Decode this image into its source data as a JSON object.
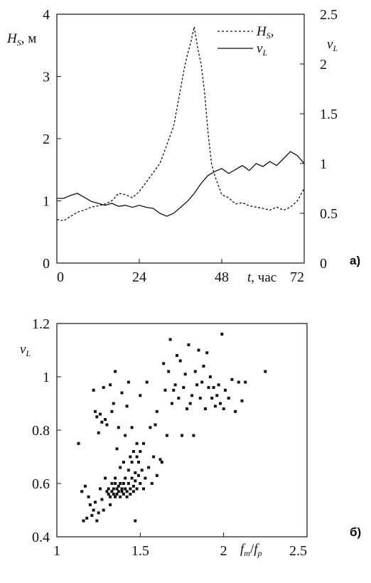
{
  "chart_data": [
    {
      "type": "line",
      "panel_label": "а)",
      "x_axis": {
        "ticks": [
          "0",
          "24",
          "48",
          "72"
        ],
        "label_var": "t",
        "label_unit": ", час",
        "range": [
          0,
          72
        ]
      },
      "y_left": {
        "ticks": [
          "0",
          "1",
          "2",
          "3",
          "4"
        ],
        "label_var": "H",
        "label_sub": "S",
        "label_unit": ", м",
        "range": [
          0,
          4
        ]
      },
      "y_right": {
        "ticks": [
          "0",
          "0.5",
          "1",
          "1.5",
          "2",
          "2.5"
        ],
        "label_var": "ν",
        "label_sub": "L",
        "range": [
          0,
          2.5
        ]
      },
      "legend": [
        {
          "var": "H",
          "sub": "S",
          "suffix": ",",
          "style": "dashed"
        },
        {
          "var": "ν",
          "sub": "L",
          "suffix": "",
          "style": "solid"
        }
      ],
      "series": [
        {
          "name": "Hs",
          "axis": "left",
          "style": "dashed",
          "x": [
            0,
            2,
            4,
            6,
            8,
            10,
            12,
            14,
            16,
            18,
            20,
            22,
            24,
            26,
            28,
            30,
            32,
            34,
            35,
            36,
            37,
            38,
            39,
            40,
            41,
            42,
            43,
            44,
            45,
            46,
            47,
            48,
            50,
            52,
            54,
            56,
            58,
            60,
            62,
            64,
            66,
            68,
            70,
            72
          ],
          "y": [
            0.7,
            0.68,
            0.75,
            0.82,
            0.85,
            0.9,
            0.92,
            0.95,
            1.0,
            1.12,
            1.1,
            1.05,
            1.15,
            1.3,
            1.45,
            1.6,
            1.9,
            2.2,
            2.5,
            2.8,
            3.1,
            3.35,
            3.55,
            3.8,
            3.45,
            3.2,
            2.75,
            2.1,
            1.6,
            1.4,
            1.25,
            1.1,
            1.05,
            0.95,
            0.97,
            0.92,
            0.9,
            0.88,
            0.85,
            0.9,
            0.85,
            0.9,
            1.0,
            1.2
          ]
        },
        {
          "name": "νL",
          "axis": "right",
          "style": "solid",
          "x": [
            0,
            2,
            4,
            6,
            8,
            10,
            12,
            14,
            16,
            18,
            20,
            22,
            24,
            26,
            28,
            30,
            32,
            34,
            36,
            38,
            40,
            42,
            44,
            46,
            48,
            50,
            52,
            54,
            56,
            58,
            60,
            62,
            64,
            66,
            68,
            70,
            72
          ],
          "y": [
            0.65,
            0.65,
            0.68,
            0.7,
            0.66,
            0.62,
            0.6,
            0.58,
            0.6,
            0.57,
            0.58,
            0.56,
            0.58,
            0.56,
            0.55,
            0.5,
            0.47,
            0.5,
            0.56,
            0.62,
            0.7,
            0.8,
            0.88,
            0.92,
            0.95,
            0.9,
            0.94,
            0.98,
            0.93,
            1.0,
            0.97,
            1.02,
            0.98,
            1.05,
            1.12,
            1.08,
            1.0
          ]
        }
      ]
    },
    {
      "type": "scatter",
      "panel_label": "б)",
      "x_axis": {
        "ticks": [
          "1",
          "1.5",
          "2",
          "2.5"
        ],
        "range": [
          1,
          2.5
        ],
        "label_num": "f",
        "label_num_sub": "m",
        "label_den": "f",
        "label_den_sub": "p"
      },
      "y_axis": {
        "ticks": [
          "0.4",
          "0.6",
          "0.8",
          "1",
          "1.2"
        ],
        "range": [
          0.4,
          1.2
        ],
        "label_var": "ν",
        "label_sub": "L"
      },
      "points": [
        [
          1.13,
          0.75
        ],
        [
          1.15,
          0.57
        ],
        [
          1.16,
          0.46
        ],
        [
          1.17,
          0.59
        ],
        [
          1.18,
          0.47
        ],
        [
          1.19,
          0.55
        ],
        [
          1.2,
          0.52
        ],
        [
          1.21,
          0.48
        ],
        [
          1.22,
          0.5
        ],
        [
          1.22,
          0.95
        ],
        [
          1.23,
          0.87
        ],
        [
          1.23,
          0.53
        ],
        [
          1.24,
          0.46
        ],
        [
          1.24,
          0.85
        ],
        [
          1.25,
          0.49
        ],
        [
          1.25,
          0.79
        ],
        [
          1.26,
          0.58
        ],
        [
          1.26,
          0.86
        ],
        [
          1.27,
          0.54
        ],
        [
          1.27,
          0.83
        ],
        [
          1.28,
          0.5
        ],
        [
          1.28,
          0.96
        ],
        [
          1.29,
          0.84
        ],
        [
          1.29,
          0.62
        ],
        [
          1.3,
          0.82
        ],
        [
          1.3,
          0.57
        ],
        [
          1.31,
          0.56
        ],
        [
          1.31,
          0.58
        ],
        [
          1.32,
          0.55
        ],
        [
          1.32,
          0.52
        ],
        [
          1.32,
          0.97
        ],
        [
          1.33,
          0.6
        ],
        [
          1.33,
          0.57
        ],
        [
          1.33,
          0.87
        ],
        [
          1.34,
          0.56
        ],
        [
          1.34,
          0.58
        ],
        [
          1.34,
          0.9
        ],
        [
          1.35,
          0.6
        ],
        [
          1.35,
          0.55
        ],
        [
          1.35,
          0.62
        ],
        [
          1.35,
          1.02
        ],
        [
          1.36,
          0.58
        ],
        [
          1.36,
          0.56
        ],
        [
          1.36,
          0.73
        ],
        [
          1.37,
          0.59
        ],
        [
          1.37,
          0.57
        ],
        [
          1.37,
          0.81
        ],
        [
          1.38,
          0.6
        ],
        [
          1.38,
          0.55
        ],
        [
          1.38,
          0.66
        ],
        [
          1.39,
          0.58
        ],
        [
          1.39,
          0.57
        ],
        [
          1.39,
          0.94
        ],
        [
          1.4,
          0.6
        ],
        [
          1.4,
          0.56
        ],
        [
          1.4,
          0.68
        ],
        [
          1.41,
          0.58
        ],
        [
          1.41,
          0.62
        ],
        [
          1.41,
          0.78
        ],
        [
          1.42,
          0.57
        ],
        [
          1.42,
          0.55
        ],
        [
          1.42,
          0.89
        ],
        [
          1.43,
          0.6
        ],
        [
          1.43,
          0.65
        ],
        [
          1.43,
          0.98
        ],
        [
          1.44,
          0.58
        ],
        [
          1.44,
          0.7
        ],
        [
          1.44,
          0.56
        ],
        [
          1.45,
          0.62
        ],
        [
          1.45,
          0.68
        ],
        [
          1.45,
          0.81
        ],
        [
          1.46,
          0.59
        ],
        [
          1.46,
          0.72
        ],
        [
          1.46,
          0.57
        ],
        [
          1.47,
          0.64
        ],
        [
          1.47,
          0.61
        ],
        [
          1.47,
          0.46
        ],
        [
          1.48,
          0.7
        ],
        [
          1.48,
          0.58
        ],
        [
          1.48,
          0.75
        ],
        [
          1.49,
          0.63
        ],
        [
          1.49,
          0.68
        ],
        [
          1.5,
          0.6
        ],
        [
          1.5,
          0.72
        ],
        [
          1.5,
          0.93
        ],
        [
          1.51,
          0.65
        ],
        [
          1.52,
          0.58
        ],
        [
          1.52,
          0.75
        ],
        [
          1.53,
          0.62
        ],
        [
          1.54,
          0.98
        ],
        [
          1.55,
          0.66
        ],
        [
          1.56,
          0.81
        ],
        [
          1.57,
          0.6
        ],
        [
          1.58,
          0.7
        ],
        [
          1.59,
          0.82
        ],
        [
          1.6,
          0.87
        ],
        [
          1.6,
          0.63
        ],
        [
          1.62,
          0.69
        ],
        [
          1.63,
          0.68
        ],
        [
          1.64,
          1.05
        ],
        [
          1.65,
          0.95
        ],
        [
          1.66,
          0.78
        ],
        [
          1.67,
          1.02
        ],
        [
          1.68,
          1.14
        ],
        [
          1.69,
          0.9
        ],
        [
          1.7,
          0.95
        ],
        [
          1.71,
          0.97
        ],
        [
          1.72,
          1.08
        ],
        [
          1.73,
          0.92
        ],
        [
          1.74,
          1.06
        ],
        [
          1.75,
          0.78
        ],
        [
          1.76,
          0.96
        ],
        [
          1.77,
          1.01
        ],
        [
          1.78,
          0.88
        ],
        [
          1.79,
          1.12
        ],
        [
          1.8,
          0.9
        ],
        [
          1.81,
          0.93
        ],
        [
          1.82,
          0.78
        ],
        [
          1.83,
          1.02
        ],
        [
          1.84,
          0.97
        ],
        [
          1.85,
          1.1
        ],
        [
          1.86,
          0.92
        ],
        [
          1.87,
          0.98
        ],
        [
          1.88,
          1.04
        ],
        [
          1.89,
          0.88
        ],
        [
          1.9,
          1.09
        ],
        [
          1.91,
          0.96
        ],
        [
          1.92,
          1.0
        ],
        [
          1.93,
          0.92
        ],
        [
          1.94,
          0.96
        ],
        [
          1.95,
          0.89
        ],
        [
          1.96,
          0.93
        ],
        [
          1.97,
          0.97
        ],
        [
          1.98,
          0.9
        ],
        [
          1.99,
          1.16
        ],
        [
          2.0,
          0.88
        ],
        [
          2.01,
          0.95
        ],
        [
          2.03,
          0.92
        ],
        [
          2.05,
          0.99
        ],
        [
          2.07,
          0.87
        ],
        [
          2.09,
          0.98
        ],
        [
          2.11,
          0.91
        ],
        [
          2.13,
          0.98
        ],
        [
          2.25,
          1.02
        ]
      ]
    }
  ]
}
